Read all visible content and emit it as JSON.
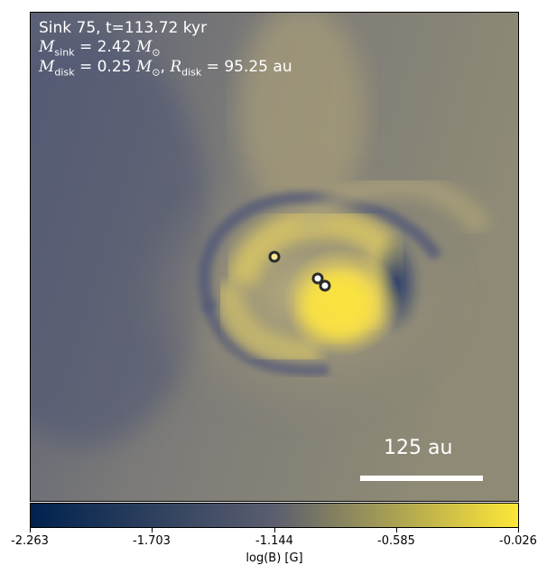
{
  "annotation": {
    "line1": "Sink 75, t=113.72 kyr",
    "msink_symbol": "M",
    "msink_sub": "sink",
    "msink_value": " = 2.42 ",
    "msun_symbol": "M",
    "msun_sub": "⊙",
    "mdisk_symbol": "M",
    "mdisk_sub": "disk",
    "mdisk_value": " = 0.25 ",
    "rdisk_symbol": "R",
    "rdisk_sub": "disk",
    "rdisk_value": " = 95.25 au"
  },
  "scale_bar": {
    "label": "125 au"
  },
  "colorbar": {
    "label": "log(B) [G]",
    "ticks": [
      "-2.263",
      "-1.703",
      "-1.144",
      "-0.585",
      "-0.026"
    ],
    "colormap": "cividis",
    "colors": [
      "#00224e",
      "#5b5e6e",
      "#fde737"
    ]
  },
  "sinks": [
    {
      "name": "sink-1"
    },
    {
      "name": "sink-2"
    },
    {
      "name": "sink-3"
    }
  ]
}
